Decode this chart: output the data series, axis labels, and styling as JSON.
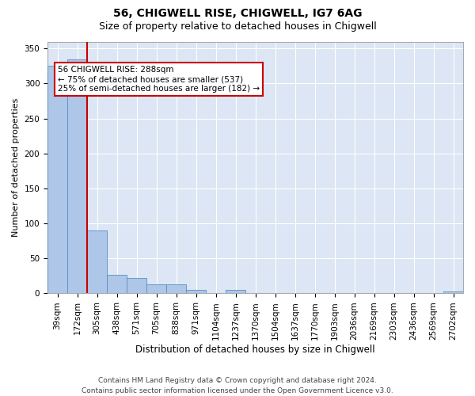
{
  "title1": "56, CHIGWELL RISE, CHIGWELL, IG7 6AG",
  "title2": "Size of property relative to detached houses in Chigwell",
  "xlabel": "Distribution of detached houses by size in Chigwell",
  "ylabel": "Number of detached properties",
  "categories": [
    "39sqm",
    "172sqm",
    "305sqm",
    "438sqm",
    "571sqm",
    "705sqm",
    "838sqm",
    "971sqm",
    "1104sqm",
    "1237sqm",
    "1370sqm",
    "1504sqm",
    "1637sqm",
    "1770sqm",
    "1903sqm",
    "2036sqm",
    "2169sqm",
    "2303sqm",
    "2436sqm",
    "2569sqm",
    "2702sqm"
  ],
  "values": [
    325,
    335,
    90,
    27,
    22,
    13,
    13,
    5,
    0,
    5,
    0,
    0,
    0,
    0,
    0,
    0,
    0,
    0,
    0,
    0,
    3
  ],
  "bar_color": "#aec6e8",
  "bar_edge_color": "#5a8fc2",
  "annotation_box_text": "56 CHIGWELL RISE: 288sqm\n← 75% of detached houses are smaller (537)\n25% of semi-detached houses are larger (182) →",
  "vline_x": 1.5,
  "vline_color": "#cc0000",
  "box_edge_color": "#cc0000",
  "background_color": "#dce6f4",
  "ylim": [
    0,
    360
  ],
  "yticks": [
    0,
    50,
    100,
    150,
    200,
    250,
    300,
    350
  ],
  "footer": "Contains HM Land Registry data © Crown copyright and database right 2024.\nContains public sector information licensed under the Open Government Licence v3.0.",
  "title_fontsize": 10,
  "subtitle_fontsize": 9,
  "xlabel_fontsize": 8.5,
  "ylabel_fontsize": 8,
  "tick_fontsize": 7.5,
  "footer_fontsize": 6.5,
  "annot_fontsize": 7.5
}
